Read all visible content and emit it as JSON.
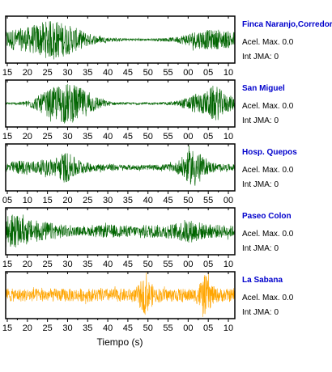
{
  "chart_data": {
    "type": "line",
    "xlabel": "Tiempo (s)",
    "panel_count": 5,
    "series": [
      {
        "name": "Finca Naranjo,Corredores",
        "acel_label": "Acel. Max. 0.0",
        "jma_label": "Int JMA: 0",
        "color": "#006400",
        "tick_labels": [
          "15",
          "20",
          "25",
          "30",
          "35",
          "40",
          "45",
          "50",
          "55",
          "00",
          "05",
          "10"
        ],
        "envelope_profile": [
          0.45,
          0.5,
          0.55,
          0.7,
          0.85,
          0.9,
          0.75,
          0.55,
          0.35,
          0.2,
          0.12,
          0.08,
          0.06,
          0.05,
          0.05,
          0.06,
          0.08,
          0.12,
          0.25,
          0.4,
          0.45,
          0.45,
          0.4,
          0.38
        ]
      },
      {
        "name": "San Miguel",
        "acel_label": "Acel. Max. 0.0",
        "jma_label": "Int JMA: 0",
        "color": "#006400",
        "tick_labels": [
          "15",
          "20",
          "25",
          "30",
          "35",
          "40",
          "45",
          "50",
          "55",
          "00",
          "05",
          "10"
        ],
        "envelope_profile": [
          0.05,
          0.05,
          0.12,
          0.3,
          0.55,
          0.8,
          0.95,
          0.85,
          0.6,
          0.35,
          0.15,
          0.06,
          0.05,
          0.05,
          0.05,
          0.05,
          0.06,
          0.1,
          0.25,
          0.45,
          0.5,
          0.9,
          0.45,
          0.3
        ]
      },
      {
        "name": "Hosp. Quepos",
        "acel_label": "Acel. Max. 0.0",
        "jma_label": "Int JMA: 0",
        "color": "#006400",
        "tick_labels": [
          "05",
          "10",
          "15",
          "20",
          "25",
          "30",
          "35",
          "40",
          "45",
          "50",
          "55",
          "00"
        ],
        "envelope_profile": [
          0.2,
          0.3,
          0.35,
          0.3,
          0.35,
          0.45,
          0.75,
          0.45,
          0.25,
          0.18,
          0.15,
          0.15,
          0.12,
          0.12,
          0.12,
          0.12,
          0.15,
          0.2,
          0.6,
          0.95,
          0.35,
          0.2,
          0.15,
          0.15
        ]
      },
      {
        "name": "Paseo Colon",
        "acel_label": "Acel. Max. 0.0",
        "jma_label": "Int JMA: 0",
        "color": "#006400",
        "tick_labels": [
          "15",
          "20",
          "25",
          "30",
          "35",
          "40",
          "45",
          "50",
          "55",
          "00",
          "05",
          "10"
        ],
        "envelope_profile": [
          0.9,
          0.75,
          0.55,
          0.5,
          0.45,
          0.35,
          0.3,
          0.2,
          0.2,
          0.25,
          0.3,
          0.3,
          0.25,
          0.25,
          0.3,
          0.3,
          0.3,
          0.35,
          0.55,
          0.5,
          0.35,
          0.3,
          0.3,
          0.25
        ]
      },
      {
        "name": "La Sabana",
        "acel_label": "Acel. Max. 0.0",
        "jma_label": "Int JMA: 0",
        "color": "#FFA500",
        "tick_labels": [
          "15",
          "20",
          "25",
          "30",
          "35",
          "40",
          "45",
          "50",
          "55",
          "00",
          "05",
          "10"
        ],
        "envelope_profile": [
          0.3,
          0.3,
          0.3,
          0.3,
          0.3,
          0.3,
          0.3,
          0.3,
          0.3,
          0.3,
          0.3,
          0.3,
          0.3,
          0.3,
          0.9,
          0.35,
          0.3,
          0.3,
          0.3,
          0.3,
          0.95,
          0.35,
          0.3,
          0.3
        ]
      }
    ]
  }
}
